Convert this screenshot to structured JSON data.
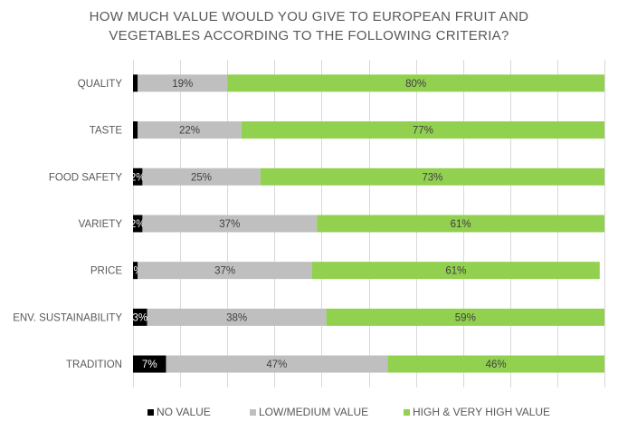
{
  "chart_data": {
    "type": "bar",
    "orientation": "horizontal",
    "stacked": true,
    "title_lines": [
      "HOW MUCH VALUE WOULD YOU GIVE TO EUROPEAN FRUIT AND",
      "VEGETABLES ACCORDING TO THE FOLLOWING CRITERIA?"
    ],
    "categories": [
      "QUALITY",
      "TASTE",
      "FOOD SAFETY",
      "VARIETY",
      "PRICE",
      "ENV. SUSTAINABILITY",
      "TRADITION"
    ],
    "series": [
      {
        "name": "NO VALUE",
        "color": "#000000",
        "label_color": "#ffffff",
        "values": [
          1,
          1,
          2,
          2,
          1,
          3,
          7
        ],
        "labels": [
          "",
          "",
          "2%",
          "2%",
          "1%",
          "3%",
          "7%"
        ]
      },
      {
        "name": "LOW/MEDIUM VALUE",
        "color": "#bfbfbf",
        "label_color": "#404040",
        "values": [
          19,
          22,
          25,
          37,
          37,
          38,
          47
        ],
        "labels": [
          "19%",
          "22%",
          "25%",
          "37%",
          "37%",
          "38%",
          "47%"
        ]
      },
      {
        "name": "HIGH & VERY HIGH VALUE",
        "color": "#92d050",
        "label_color": "#404040",
        "values": [
          80,
          77,
          73,
          61,
          61,
          59,
          46
        ],
        "labels": [
          "80%",
          "77%",
          "73%",
          "61%",
          "61%",
          "59%",
          "46%"
        ]
      }
    ],
    "xlim": [
      0,
      100
    ],
    "grid": true,
    "legend_position": "bottom"
  }
}
